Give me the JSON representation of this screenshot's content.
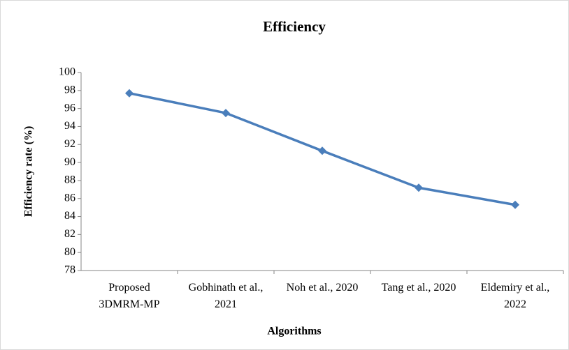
{
  "chart_data": {
    "type": "line",
    "title": "Efficiency",
    "x_label": "Algorithms",
    "y_label": "Efficiency rate (%)",
    "categories": [
      "Proposed 3DMRM-MP",
      "Gobhinath et al., 2021",
      "Noh et al., 2020",
      "Tang et al., 2020",
      "Eldemiry et al., 2022"
    ],
    "series": [
      {
        "name": "Efficiency",
        "color": "#4a7ebb",
        "values": [
          97.7,
          95.5,
          91.3,
          87.2,
          85.3
        ]
      }
    ],
    "ylim": [
      78,
      100
    ],
    "yticks": [
      78,
      80,
      82,
      84,
      86,
      88,
      90,
      92,
      94,
      96,
      98,
      100
    ],
    "grid": false
  }
}
